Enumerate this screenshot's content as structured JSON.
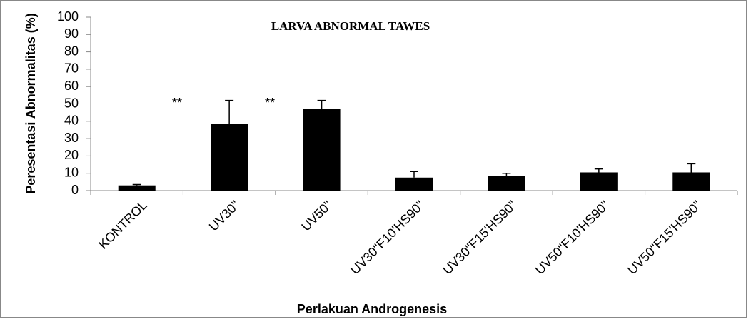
{
  "chart_data": {
    "type": "bar",
    "title": "LARVA ABNORMAL TAWES",
    "x_label": "Perlakuan Androgenesis",
    "y_label": "Peresentasi Abnormalitas (%)",
    "categories": [
      "KONTROL",
      "UV30\"",
      "UV50\"",
      "UV30\"F10'HS90\"",
      "UV30\"F15'HS90\"",
      "UV50\"F10'HS90\"",
      "UV50\"F15'HS90\""
    ],
    "values": [
      3,
      38.5,
      47,
      7.5,
      8.5,
      10.5,
      10.5
    ],
    "errors": [
      0.5,
      13.5,
      5,
      3.5,
      1.5,
      2,
      5
    ],
    "color": "#000000",
    "annotations": [
      "**",
      "**"
    ],
    "ylim": [
      0,
      100
    ],
    "yticks": [
      0,
      10,
      20,
      30,
      40,
      50,
      60,
      70,
      80,
      90,
      100
    ],
    "grid": false
  }
}
